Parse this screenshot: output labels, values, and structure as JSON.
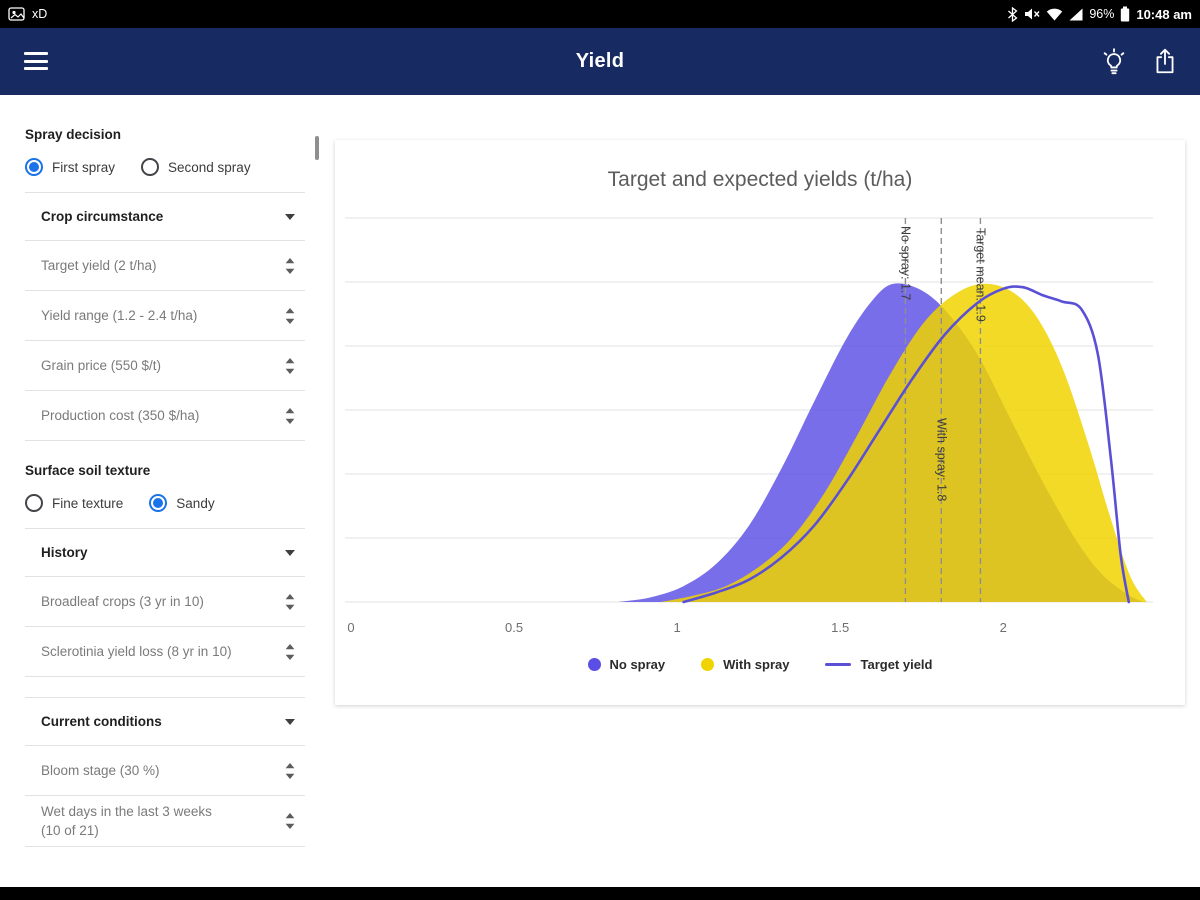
{
  "colors": {
    "app_bar": "#172b62",
    "radio_selected": "#1a73e8",
    "no_spray": "#5b4ee4",
    "with_spray": "#f0d400",
    "target_line": "#5a50d6"
  },
  "status_bar": {
    "notification_text": "xD",
    "battery_percent": "96%",
    "time": "10:48 am"
  },
  "app_bar": {
    "title": "Yield"
  },
  "sidebar": {
    "spray_decision": {
      "label": "Spray decision",
      "options": [
        {
          "label": "First spray",
          "selected": true
        },
        {
          "label": "Second spray",
          "selected": false
        }
      ]
    },
    "crop_circumstance": {
      "title": "Crop circumstance",
      "items": [
        "Target yield (2 t/ha)",
        "Yield range (1.2 - 2.4 t/ha)",
        "Grain price (550 $/t)",
        "Production cost (350 $/ha)"
      ]
    },
    "soil_texture": {
      "label": "Surface soil texture",
      "options": [
        {
          "label": "Fine texture",
          "selected": false
        },
        {
          "label": "Sandy",
          "selected": true
        }
      ]
    },
    "history": {
      "title": "History",
      "items": [
        "Broadleaf crops (3 yr in 10)",
        "Sclerotinia yield loss (8 yr in 10)"
      ]
    },
    "current_conditions": {
      "title": "Current conditions",
      "items": [
        "Bloom stage (30 %)",
        "Wet days in the last 3 weeks (10 of 21)"
      ]
    }
  },
  "chart_data": {
    "type": "area",
    "title": "Target and expected yields (t/ha)",
    "x_range": [
      0,
      2.45
    ],
    "x_ticks": [
      "0",
      "0.5",
      "1",
      "1.5",
      "2"
    ],
    "y_gridlines": 7,
    "grid": true,
    "series": [
      {
        "name": "No spray",
        "style": "area",
        "color": "#5b4ee4",
        "opacity": 0.82,
        "points": [
          [
            0.82,
            0
          ],
          [
            0.92,
            0.015
          ],
          [
            1.02,
            0.05
          ],
          [
            1.12,
            0.12
          ],
          [
            1.22,
            0.24
          ],
          [
            1.32,
            0.42
          ],
          [
            1.42,
            0.63
          ],
          [
            1.52,
            0.83
          ],
          [
            1.6,
            0.95
          ],
          [
            1.66,
            1.0
          ],
          [
            1.74,
            0.985
          ],
          [
            1.82,
            0.92
          ],
          [
            1.92,
            0.78
          ],
          [
            2.02,
            0.58
          ],
          [
            2.12,
            0.38
          ],
          [
            2.22,
            0.2
          ],
          [
            2.3,
            0.09
          ],
          [
            2.38,
            0.025
          ],
          [
            2.43,
            0
          ]
        ]
      },
      {
        "name": "With spray",
        "style": "area",
        "color": "#f0d400",
        "opacity": 0.85,
        "points": [
          [
            0.95,
            0
          ],
          [
            1.05,
            0.02
          ],
          [
            1.15,
            0.05
          ],
          [
            1.25,
            0.11
          ],
          [
            1.35,
            0.2
          ],
          [
            1.45,
            0.34
          ],
          [
            1.55,
            0.52
          ],
          [
            1.65,
            0.71
          ],
          [
            1.75,
            0.87
          ],
          [
            1.84,
            0.96
          ],
          [
            1.93,
            1.0
          ],
          [
            2.02,
            0.98
          ],
          [
            2.1,
            0.9
          ],
          [
            2.18,
            0.74
          ],
          [
            2.26,
            0.5
          ],
          [
            2.33,
            0.26
          ],
          [
            2.39,
            0.08
          ],
          [
            2.44,
            0
          ]
        ]
      },
      {
        "name": "Target yield",
        "style": "line",
        "color": "#5a50d6",
        "points": [
          [
            1.02,
            0
          ],
          [
            1.12,
            0.03
          ],
          [
            1.22,
            0.07
          ],
          [
            1.32,
            0.14
          ],
          [
            1.42,
            0.24
          ],
          [
            1.52,
            0.38
          ],
          [
            1.62,
            0.54
          ],
          [
            1.72,
            0.7
          ],
          [
            1.82,
            0.84
          ],
          [
            1.92,
            0.94
          ],
          [
            2.0,
            0.985
          ],
          [
            2.06,
            0.99
          ],
          [
            2.12,
            0.965
          ],
          [
            2.18,
            0.945
          ],
          [
            2.24,
            0.92
          ],
          [
            2.29,
            0.78
          ],
          [
            2.33,
            0.45
          ],
          [
            2.36,
            0.15
          ],
          [
            2.385,
            0
          ]
        ]
      }
    ],
    "annotations": [
      {
        "label": "No spray: 1.7",
        "x": 1.7,
        "label_offset": 8
      },
      {
        "label": "With spray: 1.8",
        "x": 1.81,
        "label_offset": 200
      },
      {
        "label": "Target mean: 1.9",
        "x": 1.93,
        "label_offset": 10
      }
    ],
    "legend": [
      {
        "label": "No spray",
        "swatch": "dot",
        "color": "#5b4ee4"
      },
      {
        "label": "With spray",
        "swatch": "dot",
        "color": "#f0d400"
      },
      {
        "label": "Target yield",
        "swatch": "line",
        "color": "#5a50d6"
      }
    ]
  }
}
